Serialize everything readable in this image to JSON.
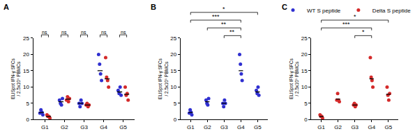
{
  "chart_data": [
    {
      "type": "scatter",
      "title": "A",
      "categories": [
        "G1",
        "G2",
        "G3",
        "G4",
        "G5"
      ],
      "y_label": [
        "ELISpot IFN-γ SFCs",
        "/ 2.5x10⁵ PBMCs"
      ],
      "ylim": [
        0,
        25
      ],
      "yticks": [
        0,
        5,
        10,
        15,
        20,
        25
      ],
      "marker": "circle",
      "legend": "top right",
      "series": [
        {
          "name": "WT S peptide",
          "color": "#2f2fd0",
          "values": [
            [
              2,
              3,
              2.3,
              1.5
            ],
            [
              6,
              5,
              4.5,
              6.5
            ],
            [
              5,
              4,
              6,
              5
            ],
            [
              20,
              17,
              14,
              12
            ],
            [
              9,
              8,
              10,
              7.5
            ]
          ],
          "medians": [
            2.2,
            5.5,
            5,
            15,
            8.5
          ]
        },
        {
          "name": "Delta S peptide",
          "color": "#d42a2a",
          "values": [
            [
              1.5,
              1,
              1,
              0.5
            ],
            [
              6,
              7,
              5.5,
              6.5
            ],
            [
              4.5,
              5,
              4,
              4.5
            ],
            [
              19,
              13,
              12,
              10
            ],
            [
              10,
              7.5,
              8,
              6
            ]
          ],
          "medians": [
            1,
            6.3,
            4.5,
            12.5,
            7.8
          ]
        }
      ],
      "comparisons": [
        {
          "from": "G1",
          "to": "G1",
          "label": "ns"
        },
        {
          "from": "G2",
          "to": "G2",
          "label": "ns"
        },
        {
          "from": "G3",
          "to": "G3",
          "label": "ns"
        },
        {
          "from": "G4",
          "to": "G4",
          "label": "ns"
        },
        {
          "from": "G5",
          "to": "G5",
          "label": "ns"
        }
      ]
    },
    {
      "type": "scatter",
      "title": "B",
      "categories": [
        "G1",
        "G2",
        "G3",
        "G4",
        "G5"
      ],
      "y_label": [
        "ELISpot IFN-γ SFCs",
        "/ 2.5x10⁵ PBMCs"
      ],
      "ylim": [
        0,
        25
      ],
      "yticks": [
        0,
        5,
        10,
        15,
        20,
        25
      ],
      "marker": "circle",
      "series": [
        {
          "color": "#2f2fd0",
          "values": [
            [
              2,
              3,
              2.3,
              1.5
            ],
            [
              6,
              5,
              4.5,
              6.5
            ],
            [
              5,
              4,
              6,
              5
            ],
            [
              20,
              17,
              14,
              12
            ],
            [
              9,
              8,
              10,
              7.5
            ]
          ],
          "medians": [
            2.2,
            5.5,
            5,
            15,
            8.5
          ]
        }
      ],
      "comparisons": [
        {
          "from": "G3",
          "to": "G4",
          "label": "**"
        },
        {
          "from": "G2",
          "to": "G4",
          "label": "**"
        },
        {
          "from": "G1",
          "to": "G4",
          "label": "***"
        },
        {
          "from": "G1",
          "to": "G5",
          "label": "*"
        }
      ]
    },
    {
      "type": "scatter",
      "title": "C",
      "categories": [
        "G1",
        "G2",
        "G3",
        "G4",
        "G5"
      ],
      "y_label": [
        "ELISpot IFN-γ SFCs",
        "/ 2.5x10⁵ PBMCs"
      ],
      "ylim": [
        0,
        25
      ],
      "yticks": [
        0,
        5,
        10,
        15,
        20,
        25
      ],
      "marker": "circle",
      "series": [
        {
          "color": "#d42a2a",
          "values": [
            [
              1.5,
              1,
              1,
              0.5
            ],
            [
              6,
              8,
              6,
              5.5
            ],
            [
              4.5,
              5,
              4,
              4.5
            ],
            [
              19,
              13,
              12,
              10
            ],
            [
              10,
              7.5,
              6,
              8
            ]
          ],
          "medians": [
            1,
            6.3,
            4.5,
            12.5,
            7.8
          ]
        }
      ],
      "comparisons": [
        {
          "from": "G3",
          "to": "G4",
          "label": "*"
        },
        {
          "from": "G1",
          "to": "G4",
          "label": "***"
        },
        {
          "from": "G1",
          "to": "G5",
          "label": "*"
        }
      ]
    }
  ]
}
